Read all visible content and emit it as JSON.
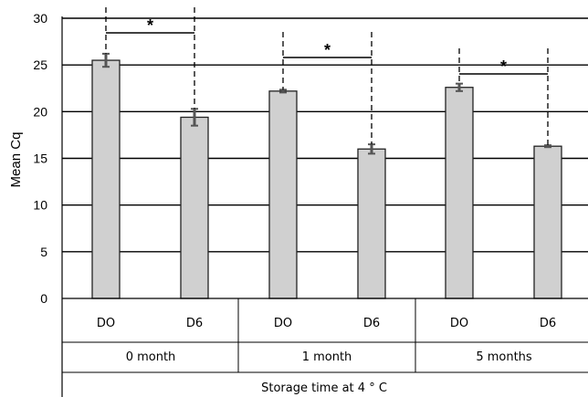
{
  "chart_data": {
    "type": "bar",
    "ylabel": "Mean Cq",
    "xlabel": "Storage time at 4 ° C",
    "ylim": [
      0,
      30
    ],
    "yticks": [
      0,
      5,
      10,
      15,
      20,
      25,
      30
    ],
    "grid": true,
    "groups": [
      {
        "label": "0 month",
        "significance": "*",
        "bars": [
          {
            "label": "DO",
            "value": 25.5,
            "error": 0.7
          },
          {
            "label": "D6",
            "value": 19.4,
            "error": 0.9
          }
        ]
      },
      {
        "label": "1 month",
        "significance": "*",
        "bars": [
          {
            "label": "DO",
            "value": 22.2,
            "error": 0.15
          },
          {
            "label": "D6",
            "value": 16.0,
            "error": 0.5
          }
        ]
      },
      {
        "label": "5 months",
        "significance": "*",
        "bars": [
          {
            "label": "DO",
            "value": 22.6,
            "error": 0.4
          },
          {
            "label": "D6",
            "value": 16.3,
            "error": 0.1
          }
        ]
      }
    ],
    "colors": {
      "bar_fill": "#d0d0d0",
      "bar_stroke": "#222222",
      "grid": "#000000",
      "error_bar": "#555555"
    }
  }
}
